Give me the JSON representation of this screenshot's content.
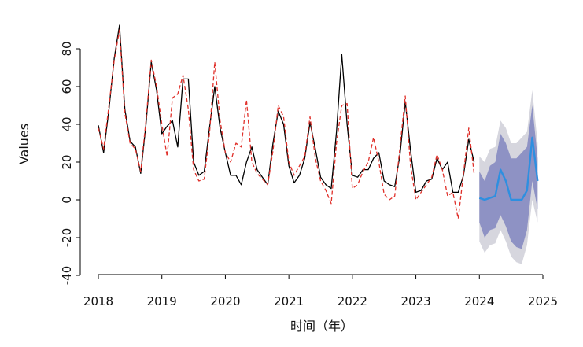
{
  "chart_data": {
    "type": "line",
    "title": "",
    "xlabel": "时间（年）",
    "ylabel": "Values",
    "xlim": [
      2018,
      2025
    ],
    "ylim": [
      -40,
      90
    ],
    "x_ticks": [
      "2018",
      "2019",
      "2020",
      "2021",
      "2022",
      "2023",
      "2024",
      "2025"
    ],
    "y_ticks": [
      "-40",
      "-20",
      "0",
      "20",
      "40",
      "60",
      "80"
    ],
    "grid": false,
    "legend": "none",
    "colors": {
      "actual": "#000000",
      "fitted": "#e0302a",
      "forecast": "#2e8fe0",
      "band_80": "#8e92c4",
      "band_95": "#d6d6de"
    },
    "series": [
      {
        "role": "actual",
        "style": "solid",
        "x": [
          2018.0,
          2018.083,
          2018.167,
          2018.25,
          2018.333,
          2018.417,
          2018.5,
          2018.583,
          2018.667,
          2018.75,
          2018.833,
          2018.917,
          2019.0,
          2019.083,
          2019.167,
          2019.25,
          2019.333,
          2019.417,
          2019.5,
          2019.583,
          2019.667,
          2019.75,
          2019.833,
          2019.917,
          2020.0,
          2020.083,
          2020.167,
          2020.25,
          2020.333,
          2020.417,
          2020.5,
          2020.583,
          2020.667,
          2020.75,
          2020.833,
          2020.917,
          2021.0,
          2021.083,
          2021.167,
          2021.25,
          2021.333,
          2021.417,
          2021.5,
          2021.583,
          2021.667,
          2021.75,
          2021.833,
          2021.917,
          2022.0,
          2022.083,
          2022.167,
          2022.25,
          2022.333,
          2022.417,
          2022.5,
          2022.583,
          2022.667,
          2022.75,
          2022.833,
          2022.917,
          2023.0,
          2023.083,
          2023.167,
          2023.25,
          2023.333,
          2023.417,
          2023.5,
          2023.583,
          2023.667,
          2023.75,
          2023.833,
          2023.917
        ],
        "y": [
          39.5,
          25,
          48,
          75,
          92.5,
          48,
          31,
          28,
          14,
          40,
          73,
          58,
          35,
          39,
          42,
          28,
          64,
          64,
          20,
          13,
          15,
          38,
          60,
          38,
          25,
          13,
          13,
          8,
          20,
          28,
          16,
          12,
          8,
          30,
          47,
          40,
          18,
          9,
          13,
          22,
          41,
          27,
          12,
          8,
          6,
          36,
          77,
          40,
          13,
          12,
          16,
          16,
          22,
          25,
          10,
          8,
          7,
          24,
          52,
          26,
          4,
          5,
          10,
          11,
          22,
          16,
          20,
          4,
          4,
          13,
          32,
          20
        ]
      },
      {
        "role": "fitted",
        "style": "dashed",
        "x": [
          2018.0,
          2018.083,
          2018.167,
          2018.25,
          2018.333,
          2018.417,
          2018.5,
          2018.583,
          2018.667,
          2018.75,
          2018.833,
          2018.917,
          2019.0,
          2019.083,
          2019.167,
          2019.25,
          2019.333,
          2019.417,
          2019.5,
          2019.583,
          2019.667,
          2019.75,
          2019.833,
          2019.917,
          2020.0,
          2020.083,
          2020.167,
          2020.25,
          2020.333,
          2020.417,
          2020.5,
          2020.583,
          2020.667,
          2020.75,
          2020.833,
          2020.917,
          2021.0,
          2021.083,
          2021.167,
          2021.25,
          2021.333,
          2021.417,
          2021.5,
          2021.583,
          2021.667,
          2021.75,
          2021.833,
          2021.917,
          2022.0,
          2022.083,
          2022.167,
          2022.25,
          2022.333,
          2022.417,
          2022.5,
          2022.583,
          2022.667,
          2022.75,
          2022.833,
          2022.917,
          2023.0,
          2023.083,
          2023.167,
          2023.25,
          2023.333,
          2023.417,
          2023.5,
          2023.583,
          2023.667,
          2023.75,
          2023.833,
          2023.917
        ],
        "y": [
          38,
          27,
          50,
          74,
          90,
          46,
          30,
          27,
          15,
          42,
          74,
          60,
          40,
          23,
          54,
          56,
          66,
          48,
          16,
          10,
          11,
          35,
          73,
          42,
          25,
          20,
          30,
          28,
          53,
          20,
          14,
          11,
          8,
          26,
          50,
          44,
          20,
          13,
          18,
          23,
          44,
          22,
          10,
          5,
          -2,
          30,
          50,
          51,
          6,
          8,
          15,
          20,
          33,
          20,
          3,
          0,
          2,
          28,
          55,
          18,
          0,
          4,
          8,
          12,
          24,
          16,
          2,
          4,
          -10,
          14,
          38,
          14
        ]
      },
      {
        "role": "forecast",
        "style": "solid",
        "x": [
          2024.0,
          2024.083,
          2024.167,
          2024.25,
          2024.333,
          2024.417,
          2024.5,
          2024.583,
          2024.667,
          2024.75,
          2024.833,
          2024.917
        ],
        "y": [
          1,
          0,
          1,
          2,
          16,
          10,
          0,
          0,
          0,
          5,
          33,
          10
        ]
      }
    ],
    "intervals": [
      {
        "level": "80",
        "x": [
          2024.0,
          2024.083,
          2024.167,
          2024.25,
          2024.333,
          2024.417,
          2024.5,
          2024.583,
          2024.667,
          2024.75,
          2024.833,
          2024.917
        ],
        "lower": [
          -12,
          -20,
          -16,
          -15,
          -8,
          -14,
          -22,
          -25,
          -26,
          -16,
          10,
          -5
        ],
        "upper": [
          15,
          10,
          18,
          20,
          35,
          30,
          22,
          22,
          25,
          28,
          50,
          22
        ]
      },
      {
        "level": "95",
        "x": [
          2024.0,
          2024.083,
          2024.167,
          2024.25,
          2024.333,
          2024.417,
          2024.5,
          2024.583,
          2024.667,
          2024.75,
          2024.833,
          2024.917
        ],
        "lower": [
          -22,
          -28,
          -24,
          -23,
          -16,
          -22,
          -30,
          -33,
          -34,
          -24,
          0,
          -12
        ],
        "upper": [
          23,
          20,
          27,
          28,
          42,
          38,
          30,
          30,
          33,
          36,
          58,
          30
        ]
      }
    ]
  }
}
